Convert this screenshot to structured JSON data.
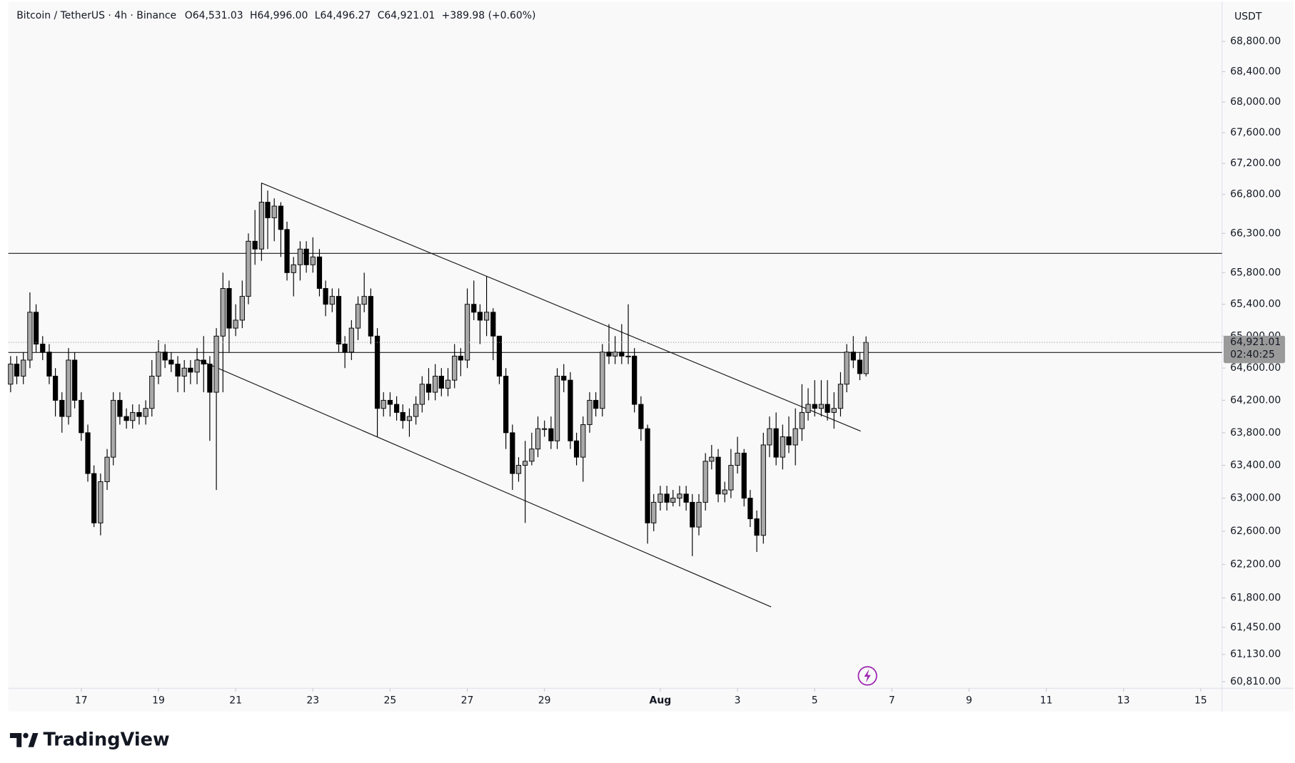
{
  "chart_data": {
    "type": "candlestick",
    "title": "Bitcoin / TetherUS · 4h · Binance",
    "ohlc_labels": [
      "O64,531.03",
      "H64,996.00",
      "L64,496.27",
      "C64,921.01",
      "+389.98 (+0.60%)"
    ],
    "currency": "USDT",
    "last_price": {
      "value": 64921.01,
      "label": "64,921.01"
    },
    "countdown": "02:40:25",
    "brand": "TradingView",
    "log_scale": true,
    "up_color": "#a9a9a9",
    "down_color": "#000000",
    "line_color": "#1a1a1a",
    "xlim": [
      15.11,
      46.55
    ],
    "xticks": [
      17,
      19,
      21,
      23,
      25,
      27,
      29,
      {
        "value": 32,
        "label": "Aug"
      },
      {
        "value": 34,
        "label": "3"
      },
      {
        "value": 36,
        "label": "5"
      },
      {
        "value": 38,
        "label": "7"
      },
      {
        "value": 40,
        "label": "9"
      },
      {
        "value": 42,
        "label": "11"
      },
      {
        "value": 44,
        "label": "13"
      },
      {
        "value": 46,
        "label": "15"
      }
    ],
    "ylim": [
      60732,
      69329
    ],
    "yticks": [
      {
        "value": 68800,
        "label": "68,800.00"
      },
      {
        "value": 68400,
        "label": "68,400.00"
      },
      {
        "value": 68000,
        "label": "68,000.00"
      },
      {
        "value": 67600,
        "label": "67,600.00"
      },
      {
        "value": 67200,
        "label": "67,200.00"
      },
      {
        "value": 66800,
        "label": "66,800.00"
      },
      {
        "value": 66300,
        "label": "66,300.00"
      },
      {
        "value": 65800,
        "label": "65,800.00"
      },
      {
        "value": 65400,
        "label": "65,400.00"
      },
      {
        "value": 65000,
        "label": "65,000.00"
      },
      {
        "value": 64600,
        "label": "64,600.00"
      },
      {
        "value": 64200,
        "label": "64,200.00"
      },
      {
        "value": 63800,
        "label": "63,800.00"
      },
      {
        "value": 63400,
        "label": "63,400.00"
      },
      {
        "value": 63000,
        "label": "63,000.00"
      },
      {
        "value": 62600,
        "label": "62,600.00"
      },
      {
        "value": 62200,
        "label": "62,200.00"
      },
      {
        "value": 61800,
        "label": "61,800.00"
      },
      {
        "value": 61450,
        "label": "61,450.00"
      },
      {
        "value": 61130,
        "label": "61,130.00"
      },
      {
        "value": 60810,
        "label": "60,810.00"
      }
    ],
    "levels": [
      66045,
      64795
    ],
    "trendlines": [
      {
        "x": [
          21.67,
          37.19
        ],
        "y": [
          66947,
          63820
        ]
      },
      {
        "x": [
          19.99,
          34.87
        ],
        "y": [
          64713,
          61693
        ]
      }
    ],
    "x": [
      15.17,
      15.33,
      15.5,
      15.67,
      15.83,
      16,
      16.17,
      16.33,
      16.5,
      16.67,
      16.83,
      17,
      17.17,
      17.33,
      17.5,
      17.67,
      17.83,
      18,
      18.17,
      18.33,
      18.5,
      18.67,
      18.83,
      19,
      19.17,
      19.33,
      19.5,
      19.67,
      19.83,
      20,
      20.17,
      20.33,
      20.5,
      20.67,
      20.83,
      21,
      21.17,
      21.33,
      21.5,
      21.67,
      21.83,
      22,
      22.17,
      22.33,
      22.5,
      22.67,
      22.83,
      23,
      23.17,
      23.33,
      23.5,
      23.67,
      23.83,
      24,
      24.17,
      24.33,
      24.5,
      24.67,
      24.83,
      25,
      25.17,
      25.33,
      25.5,
      25.67,
      25.83,
      26,
      26.17,
      26.33,
      26.5,
      26.67,
      26.83,
      27,
      27.17,
      27.33,
      27.5,
      27.67,
      27.83,
      28,
      28.17,
      28.33,
      28.5,
      28.67,
      28.83,
      29,
      29.17,
      29.33,
      29.5,
      29.67,
      29.83,
      30,
      30.17,
      30.33,
      30.5,
      30.67,
      30.83,
      31,
      31.17,
      31.33,
      31.5,
      31.67,
      31.83,
      32,
      32.17,
      32.33,
      32.5,
      32.67,
      32.83,
      33,
      33.17,
      33.33,
      33.5,
      33.67,
      33.83,
      34,
      34.17,
      34.33,
      34.5,
      34.67,
      34.83,
      35,
      35.17,
      35.33,
      35.5,
      35.67,
      35.83,
      36,
      36.17,
      36.33,
      36.5,
      36.67,
      36.83,
      37,
      37.17,
      37.33
    ],
    "open": [
      64400,
      64650,
      64500,
      64700,
      65300,
      64900,
      64800,
      64500,
      64200,
      64000,
      64700,
      64200,
      63800,
      63300,
      62700,
      63200,
      63500,
      64200,
      64000,
      63950,
      64050,
      64000,
      64100,
      64500,
      64800,
      64700,
      64650,
      64500,
      64600,
      64550,
      64700,
      64650,
      64300,
      65000,
      65600,
      65100,
      65200,
      65500,
      66200,
      66100,
      66700,
      66500,
      66650,
      66350,
      65800,
      65900,
      66100,
      65900,
      66000,
      65600,
      65400,
      65500,
      64900,
      64800,
      65100,
      65400,
      65500,
      65000,
      64100,
      64200,
      64150,
      64050,
      63950,
      64000,
      64150,
      64400,
      64300,
      64500,
      64350,
      64450,
      64750,
      64700,
      65400,
      65300,
      65200,
      65300,
      65000,
      64500,
      63800,
      63300,
      63400,
      63450,
      63600,
      63850,
      63850,
      63700,
      64500,
      64450,
      63700,
      63500,
      63900,
      64200,
      64100,
      64800,
      64750,
      64800,
      64750,
      64750,
      64150,
      63850,
      62700,
      62950,
      63050,
      62950,
      63000,
      63050,
      62950,
      62650,
      62950,
      63450,
      63500,
      63050,
      63100,
      63400,
      63550,
      63000,
      62750,
      62550,
      63650,
      63850,
      63500,
      63750,
      63650,
      63850,
      64050,
      64150,
      64100,
      64150,
      64050,
      64100,
      64400,
      64800,
      64700,
      64531.03
    ],
    "high": [
      64750,
      64750,
      64800,
      65550,
      65400,
      65000,
      64900,
      64600,
      64300,
      64850,
      64800,
      64300,
      63900,
      63400,
      63300,
      63600,
      64300,
      64300,
      64100,
      64150,
      64150,
      64200,
      64700,
      64950,
      64900,
      64800,
      64750,
      64700,
      64700,
      64850,
      65000,
      64750,
      65100,
      65800,
      65700,
      65400,
      65700,
      66300,
      66600,
      66950,
      66850,
      66750,
      66700,
      66450,
      66000,
      66200,
      66200,
      66250,
      66100,
      65700,
      65600,
      65600,
      65000,
      65200,
      65500,
      65800,
      65600,
      65100,
      64300,
      64300,
      64250,
      64150,
      64100,
      64250,
      64500,
      64600,
      64650,
      64600,
      64600,
      64900,
      64850,
      65600,
      65700,
      65400,
      65750,
      65350,
      65000,
      64600,
      63900,
      63500,
      63700,
      63800,
      64000,
      63950,
      64000,
      64600,
      64650,
      64550,
      63800,
      64000,
      64300,
      64300,
      64900,
      65150,
      65000,
      65150,
      65400,
      64850,
      64250,
      63900,
      63050,
      63150,
      63150,
      63100,
      63150,
      63150,
      63050,
      63050,
      63550,
      63650,
      63600,
      63200,
      63600,
      63750,
      63600,
      63100,
      62850,
      63800,
      64000,
      64050,
      63900,
      64000,
      64100,
      64400,
      64350,
      64450,
      64450,
      64450,
      64300,
      64550,
      64900,
      65000,
      64800,
      64996
    ],
    "low": [
      64300,
      64400,
      64400,
      64600,
      64800,
      64700,
      64400,
      64000,
      63800,
      63900,
      64100,
      63700,
      63200,
      62650,
      62550,
      63100,
      63400,
      63900,
      63850,
      63850,
      63900,
      63900,
      64000,
      64400,
      64600,
      64550,
      64300,
      64300,
      64400,
      64400,
      64300,
      63700,
      63100,
      64300,
      64800,
      65000,
      65100,
      65400,
      65900,
      65950,
      66100,
      66200,
      66000,
      65700,
      65500,
      65700,
      65800,
      65800,
      65500,
      65250,
      65300,
      64800,
      64600,
      64700,
      64950,
      65300,
      64900,
      63750,
      64000,
      64000,
      63950,
      63850,
      63750,
      63900,
      64050,
      64200,
      64200,
      64250,
      64250,
      64350,
      64500,
      64600,
      65200,
      64900,
      65000,
      64700,
      64400,
      63600,
      63100,
      63200,
      62700,
      63400,
      63500,
      63750,
      63600,
      63600,
      64300,
      63600,
      63400,
      63200,
      63800,
      64000,
      64000,
      64650,
      64650,
      64650,
      64650,
      64050,
      63700,
      62450,
      62600,
      62850,
      62850,
      62900,
      62900,
      62850,
      62300,
      62550,
      62850,
      63350,
      62950,
      62950,
      63000,
      63300,
      62900,
      62650,
      62350,
      62450,
      63500,
      63400,
      63350,
      63550,
      63400,
      63700,
      63950,
      64000,
      64000,
      63950,
      63850,
      64000,
      64300,
      64600,
      64450,
      64496.27
    ],
    "close": [
      64650,
      64500,
      64700,
      65300,
      64900,
      64800,
      64500,
      64200,
      64000,
      64700,
      64200,
      63800,
      63300,
      62700,
      63200,
      63500,
      64200,
      64000,
      63950,
      64050,
      64000,
      64100,
      64500,
      64800,
      64700,
      64650,
      64500,
      64600,
      64550,
      64700,
      64650,
      64300,
      65000,
      65600,
      65100,
      65200,
      65500,
      66200,
      66100,
      66700,
      66500,
      66650,
      66350,
      65800,
      65900,
      66100,
      65900,
      66000,
      65600,
      65400,
      65500,
      64900,
      64800,
      65100,
      65400,
      65500,
      65000,
      64100,
      64200,
      64150,
      64050,
      63950,
      64000,
      64150,
      64400,
      64300,
      64500,
      64350,
      64450,
      64750,
      64700,
      65400,
      65300,
      65200,
      65300,
      65000,
      64500,
      63800,
      63300,
      63400,
      63450,
      63600,
      63850,
      63850,
      63700,
      64500,
      64450,
      63700,
      63500,
      63900,
      64200,
      64100,
      64800,
      64750,
      64800,
      64750,
      64750,
      64150,
      63850,
      62700,
      62950,
      63050,
      62950,
      63000,
      63050,
      62950,
      62650,
      62950,
      63450,
      63500,
      63050,
      63100,
      63400,
      63550,
      63000,
      62750,
      62550,
      63650,
      63850,
      63500,
      63750,
      63650,
      63850,
      64050,
      64150,
      64100,
      64150,
      64050,
      64100,
      64400,
      64800,
      64700,
      64531.03,
      64921.01
    ]
  }
}
